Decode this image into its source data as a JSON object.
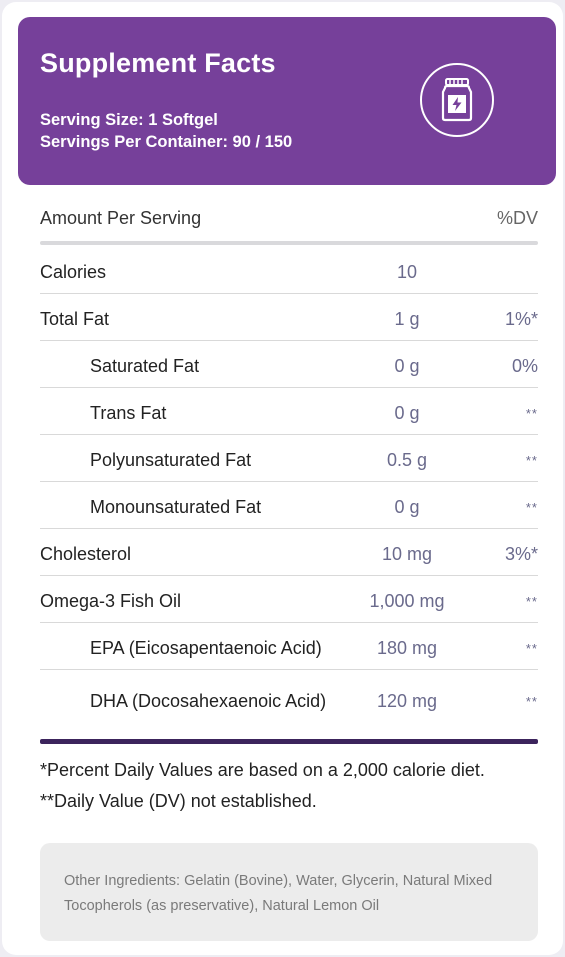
{
  "header": {
    "title": "Supplement Facts",
    "serving_size": "Serving Size: 1 Softgel",
    "servings_per_container": "Servings Per Container: 90 / 150",
    "icon": "supplement-bottle-icon",
    "background_color": "#76409a"
  },
  "table": {
    "column_amount_label": "Amount Per Serving",
    "column_dv_label": "%DV",
    "rows": [
      {
        "name": "Calories",
        "amount": "10",
        "dv": ""
      },
      {
        "name": "Total Fat",
        "amount": "1 g",
        "dv": "1%*"
      },
      {
        "name": "Saturated Fat",
        "amount": "0 g",
        "dv": "0%"
      },
      {
        "name": "Trans Fat",
        "amount": "0 g",
        "dv": "**"
      },
      {
        "name": "Polyunsaturated Fat",
        "amount": "0.5 g",
        "dv": "**"
      },
      {
        "name": "Monounsaturated Fat",
        "amount": "0 g",
        "dv": "**"
      },
      {
        "name": "Cholesterol",
        "amount": "10 mg",
        "dv": "3%*"
      },
      {
        "name": "Omega-3 Fish Oil",
        "amount": "1,000 mg",
        "dv": "**"
      },
      {
        "name": "EPA (Eicosapentaenoic Acid)",
        "amount": "180 mg",
        "dv": "**"
      },
      {
        "name": "DHA (Docosahexaenoic Acid)",
        "amount": "120 mg",
        "dv": "**"
      }
    ]
  },
  "footnotes": {
    "percent_dv": "*Percent Daily Values are based on a 2,000 calorie diet.",
    "dv_not_established": "**Daily Value (DV) not established."
  },
  "other_ingredients": "Other Ingredients: Gelatin (Bovine), Water, Glycerin, Natural Mixed Tocopherols (as preservative), Natural Lemon Oil"
}
